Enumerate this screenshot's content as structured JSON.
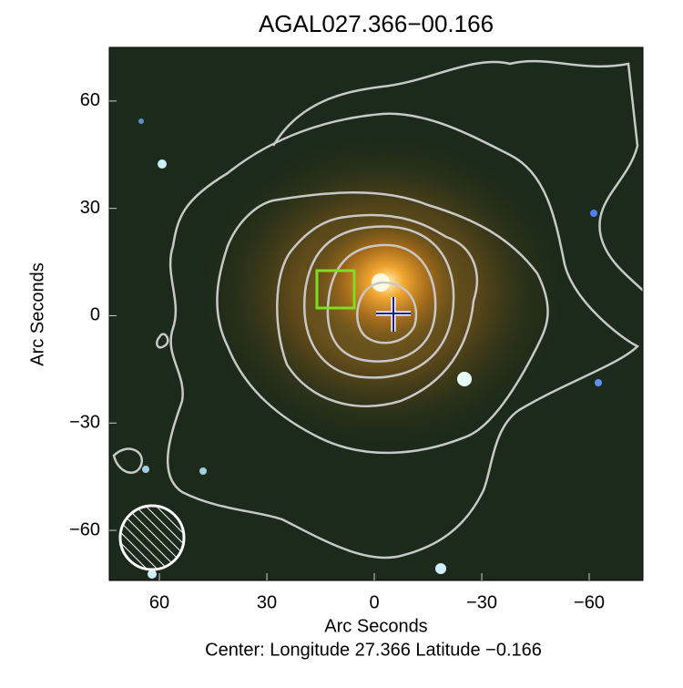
{
  "chart_data": {
    "type": "image",
    "title": "AGAL027.366−00.166",
    "x_label": "Arc Seconds",
    "y_label": "Arc Seconds",
    "footer": "Center:  Longitude 27.366 Latitude −0.166",
    "xlim": [
      74,
      -75
    ],
    "ylim": [
      -74,
      75
    ],
    "xticks": [
      60,
      30,
      0,
      {
        "value": -30,
        "label": "−30"
      },
      {
        "value": -60,
        "label": "−60"
      }
    ],
    "yticks": [
      {
        "value": -60,
        "label": "−60"
      },
      {
        "value": -30,
        "label": "−30"
      },
      0,
      30,
      60
    ]
  }
}
